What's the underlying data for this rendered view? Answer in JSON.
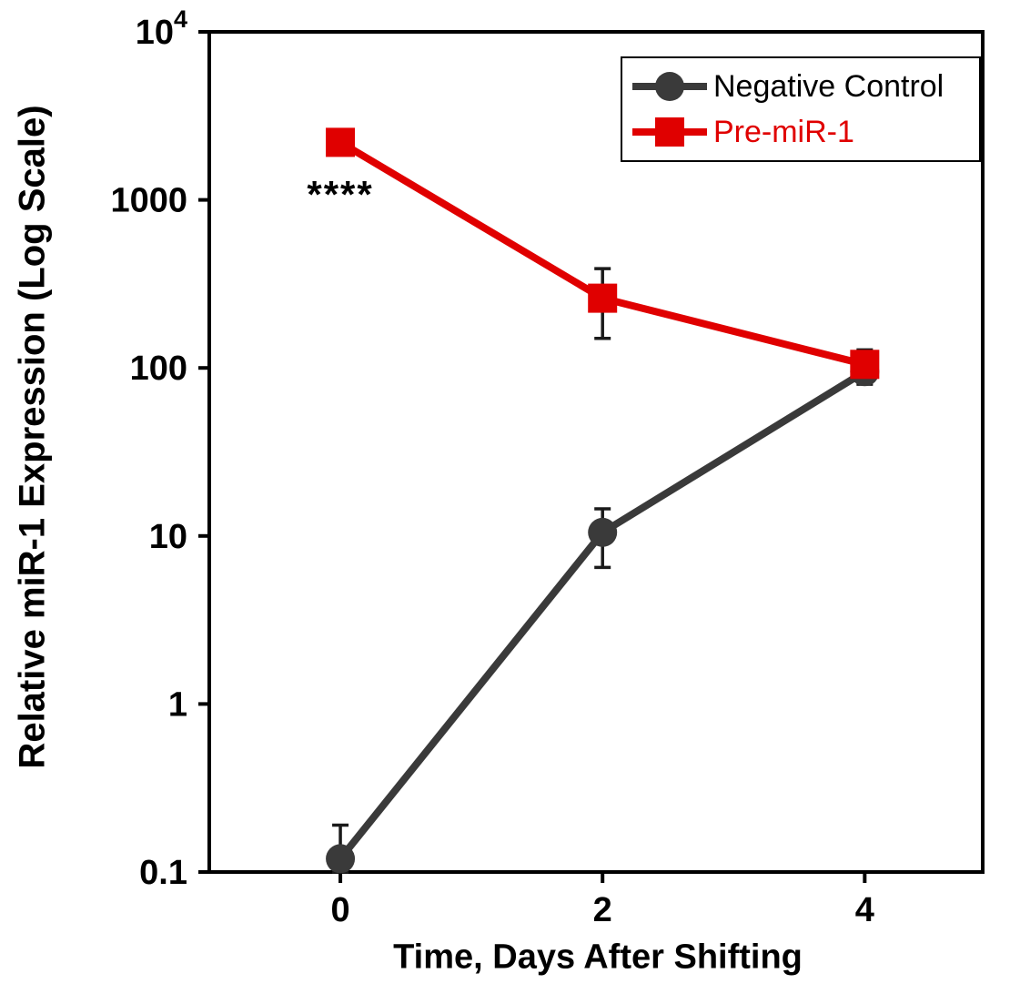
{
  "chart_data": {
    "type": "line",
    "title": "",
    "xlabel": "Time, Days After Shifting",
    "ylabel": "Relative miR-1 Expression (Log Scale)",
    "yscale": "log",
    "ylim": [
      0.1,
      10000
    ],
    "xlim": [
      -1,
      4.9
    ],
    "xticks": [
      0,
      2,
      4
    ],
    "yticks": [
      10000,
      1000,
      100,
      10,
      1,
      0.1
    ],
    "ytick_labels": [
      "10^4",
      "1000",
      "100",
      "10",
      "1",
      "0.1"
    ],
    "grid": false,
    "legend_position": "top-right",
    "axis_color": "#000000",
    "errorbar_color": "#1a1a1a",
    "annotation": {
      "text": "****",
      "x": 0,
      "y": 900
    },
    "series": [
      {
        "name": "Negative Control",
        "color": "#3a3a3a",
        "legend_text_color": "#000000",
        "marker": "circle",
        "points": [
          {
            "x": 0,
            "y": 0.12,
            "lo": 0.1,
            "hi": 0.19
          },
          {
            "x": 2,
            "y": 10.5,
            "lo": 6.5,
            "hi": 14.5
          },
          {
            "x": 4,
            "y": 95,
            "lo": 80,
            "hi": 120
          }
        ]
      },
      {
        "name": "Pre-miR-1",
        "color": "#e00000",
        "legend_text_color": "#e00000",
        "marker": "square",
        "points": [
          {
            "x": 0,
            "y": 2200,
            "lo": 2200,
            "hi": 2200
          },
          {
            "x": 2,
            "y": 260,
            "lo": 150,
            "hi": 390
          },
          {
            "x": 4,
            "y": 105,
            "lo": 88,
            "hi": 128
          }
        ]
      }
    ]
  }
}
